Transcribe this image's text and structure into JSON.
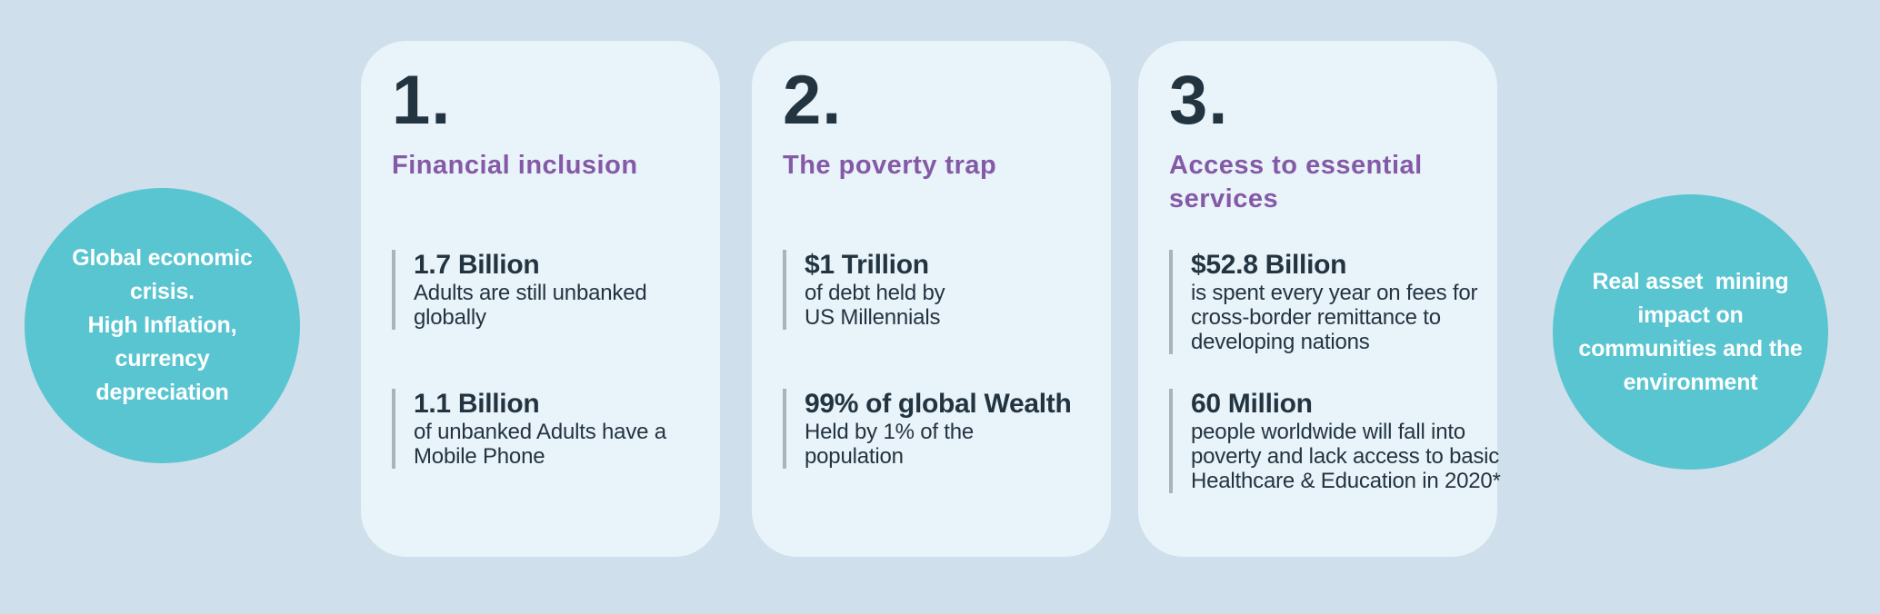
{
  "colors": {
    "background": "#cfdfeb",
    "card_background": "#e9f3fa",
    "circle_teal": "#58c5d1",
    "heading_purple": "#8459a6",
    "text_navy": "#233441",
    "stat_bar_gray": "#a9b3ba",
    "circle_text": "#ffffff"
  },
  "circles": {
    "left": {
      "text": "Global economic\ncrisis.\nHigh Inflation,\ncurrency\ndepreciation"
    },
    "right": {
      "text": "Real asset  mining\nimpact on\ncommunities and the\nenvironment"
    }
  },
  "cards": [
    {
      "number": "1.",
      "heading": "Financial inclusion",
      "stats": [
        {
          "value": "1.7 Billion",
          "description": "Adults are still unbanked\nglobally"
        },
        {
          "value": "1.1 Billion",
          "description": "of unbanked Adults have a\nMobile Phone"
        }
      ]
    },
    {
      "number": "2.",
      "heading": "The poverty trap",
      "stats": [
        {
          "value": "$1 Trillion",
          "description": "of debt held by\nUS Millennials"
        },
        {
          "value": "99% of global Wealth",
          "description": "Held by 1% of the\npopulation"
        }
      ]
    },
    {
      "number": "3.",
      "heading": "Access to essential\nservices",
      "stats": [
        {
          "value": "$52.8 Billion",
          "description": "is spent every year on fees for\ncross-border remittance to\ndeveloping nations"
        },
        {
          "value": "60 Million",
          "description": "people worldwide will fall into\npoverty and lack access to basic\nHealthcare & Education in 2020*"
        }
      ]
    }
  ]
}
